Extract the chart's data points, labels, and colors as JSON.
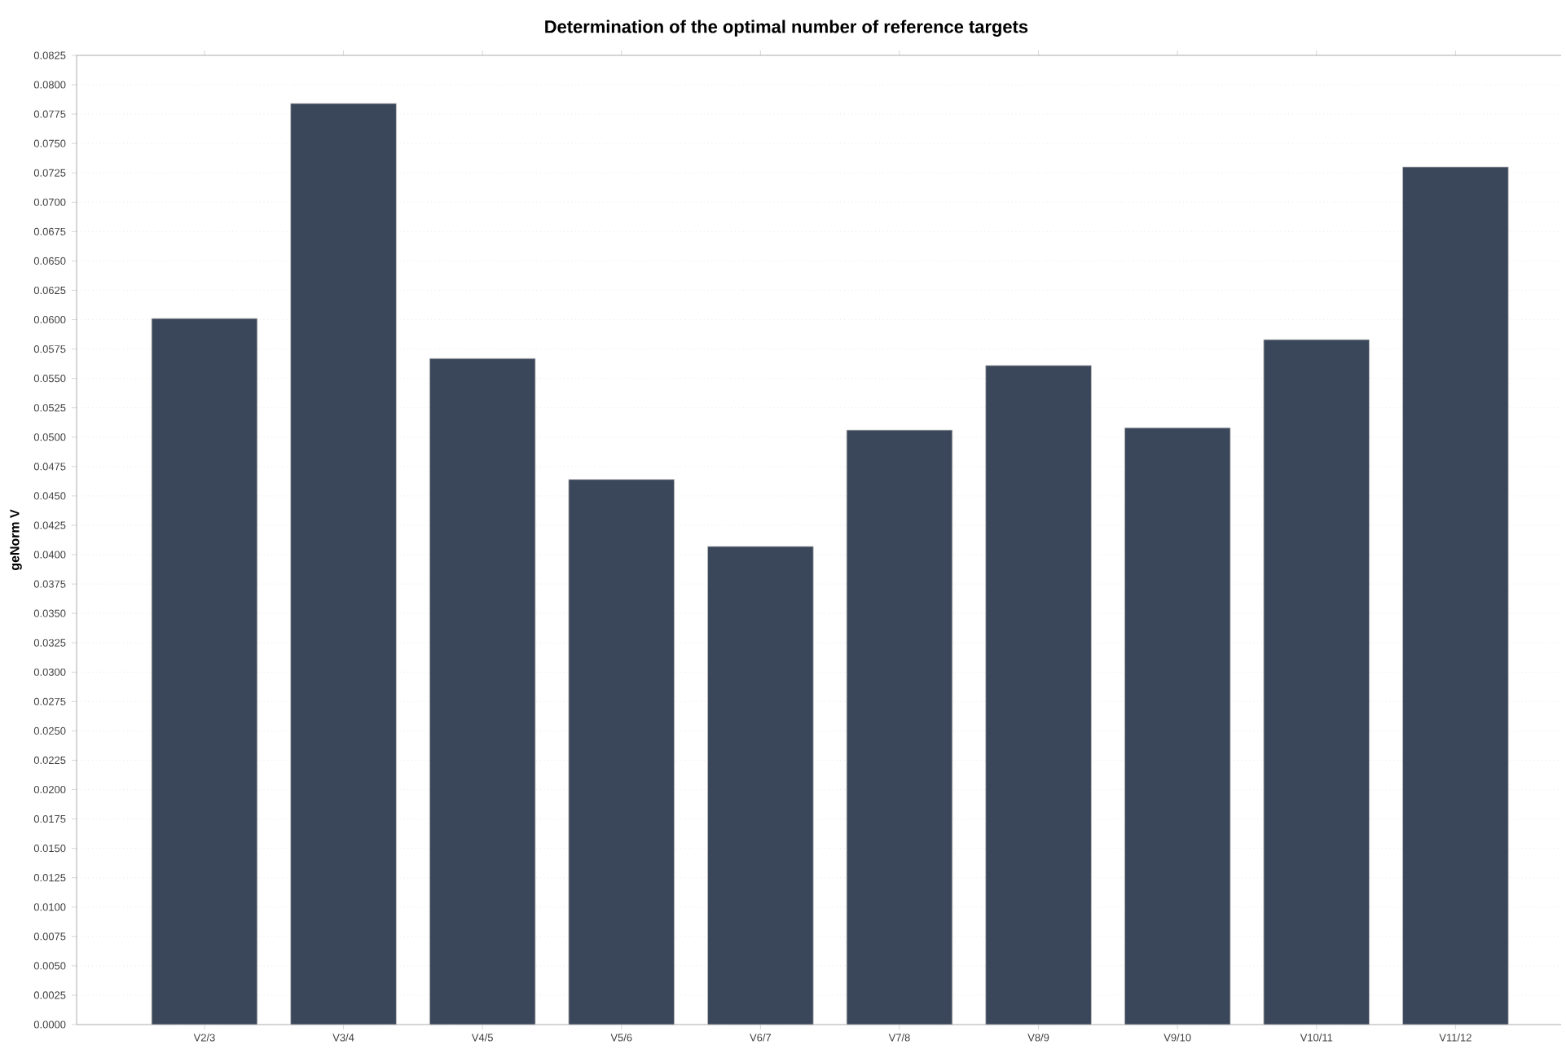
{
  "chart_data": {
    "type": "bar",
    "title": "Determination of the optimal number of reference targets",
    "ylabel": "geNorm V",
    "categories": [
      "V2/3",
      "V3/4",
      "V4/5",
      "V5/6",
      "V6/7",
      "V7/8",
      "V8/9",
      "V9/10",
      "V10/11",
      "V11/12"
    ],
    "values": [
      0.0601,
      0.0784,
      0.0567,
      0.0464,
      0.0407,
      0.0506,
      0.0561,
      0.0508,
      0.0583,
      0.073
    ],
    "color": "#3a475a",
    "ylim": [
      0,
      0.0825
    ],
    "yticks": [
      {
        "value": 0,
        "label": "0.0000"
      },
      0.0025,
      {
        "value": 0.005,
        "label": "0.0050"
      },
      0.0075,
      {
        "value": 0.01,
        "label": "0.0100"
      },
      0.0125,
      {
        "value": 0.015,
        "label": "0.0150"
      },
      0.0175,
      {
        "value": 0.02,
        "label": "0.0200"
      },
      0.0225,
      {
        "value": 0.025,
        "label": "0.0250"
      },
      0.0275,
      {
        "value": 0.03,
        "label": "0.0300"
      },
      0.0325,
      {
        "value": 0.035,
        "label": "0.0350"
      },
      0.0375,
      {
        "value": 0.04,
        "label": "0.0400"
      },
      0.0425,
      {
        "value": 0.045,
        "label": "0.0450"
      },
      0.0475,
      {
        "value": 0.05,
        "label": "0.0500"
      },
      0.0525,
      {
        "value": 0.055,
        "label": "0.0550"
      },
      0.0575,
      {
        "value": 0.06,
        "label": "0.0600"
      },
      0.0625,
      {
        "value": 0.065,
        "label": "0.0650"
      },
      0.0675,
      {
        "value": 0.07,
        "label": "0.0700"
      },
      0.0725,
      {
        "value": 0.075,
        "label": "0.0750"
      },
      0.0775,
      {
        "value": 0.08,
        "label": "0.0800"
      },
      0.0825
    ],
    "grid": "y"
  }
}
